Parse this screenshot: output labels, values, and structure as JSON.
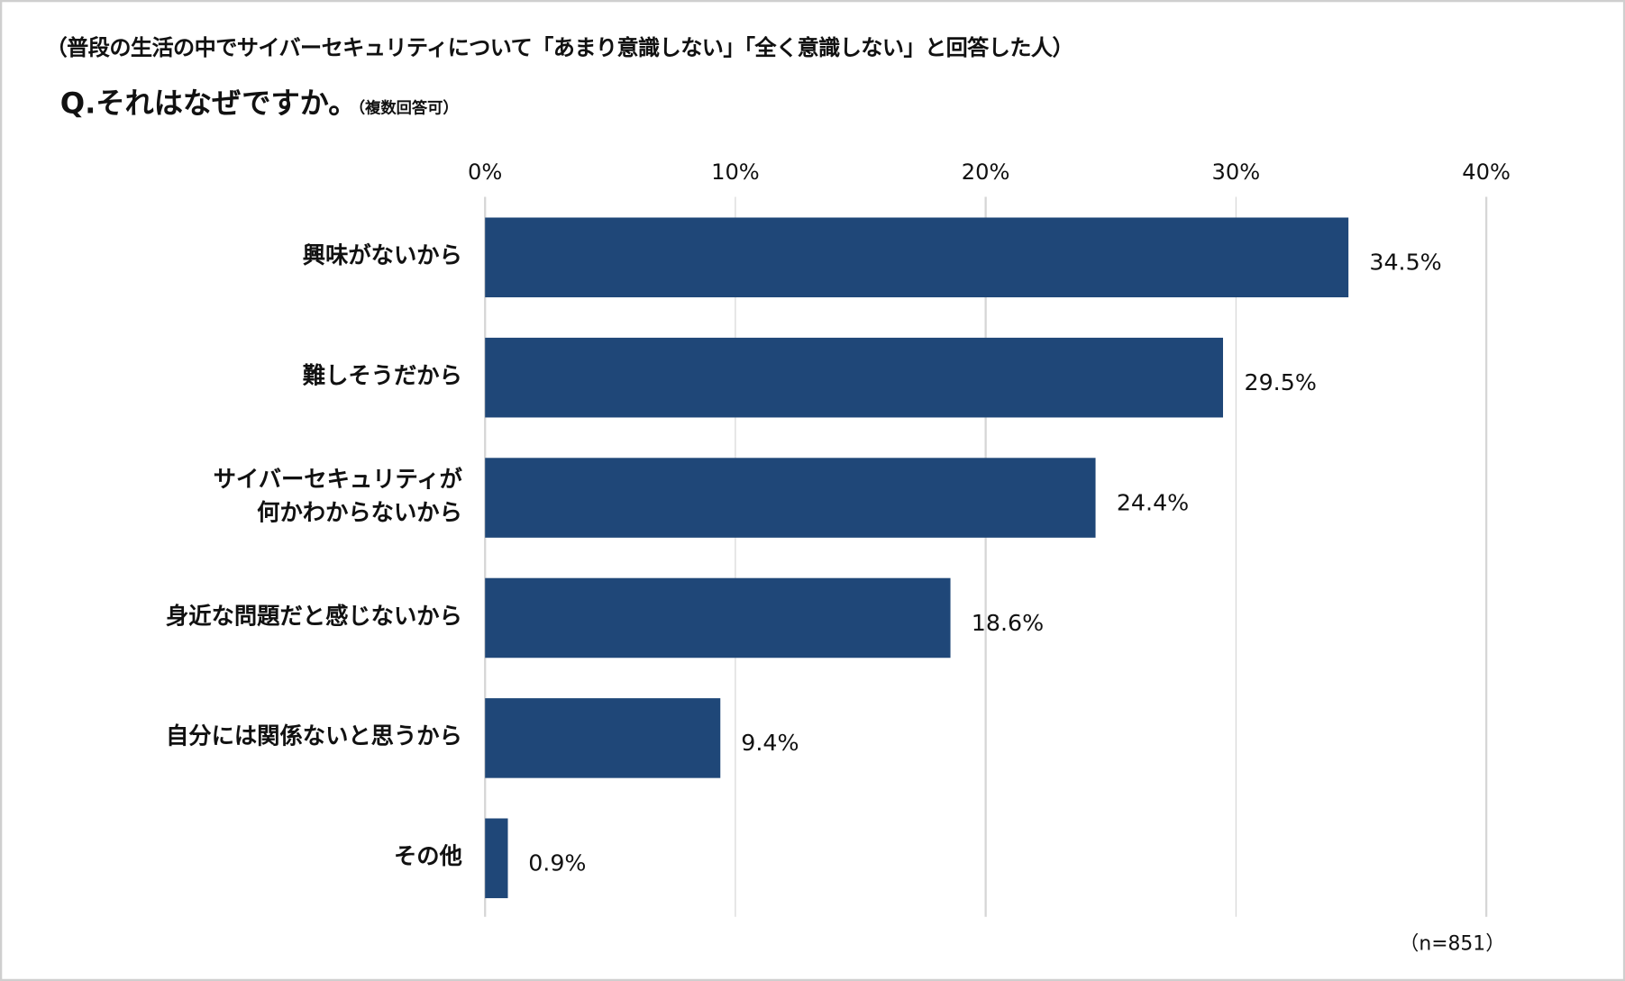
{
  "chart_data": {
    "type": "bar",
    "orientation": "horizontal",
    "subtitle": "（普段の生活の中でサイバーセキュリティについて「あまり意識しない」「全く意識しない」と回答した人）",
    "title": "Q.それはなぜですか。",
    "title_note": "（複数回答可）",
    "categories": [
      "興味がないから",
      "難しそうだから",
      "サイバーセキュリティが\n何かわからないから",
      "身近な問題だと感じないから",
      "自分には関係ないと思うから",
      "その他"
    ],
    "values": [
      34.5,
      29.5,
      24.4,
      18.6,
      9.4,
      0.9
    ],
    "value_labels": [
      "34.5%",
      "29.5%",
      "24.4%",
      "18.6%",
      "9.4%",
      "0.9%"
    ],
    "xlim": [
      0,
      40
    ],
    "xticks": [
      0,
      10,
      20,
      30,
      40
    ],
    "xtick_labels": [
      "0%",
      "10%",
      "20%",
      "30%",
      "40%"
    ],
    "axis_position": "top",
    "grid": true,
    "bar_color": "#1f4778",
    "sample_note": "（n=851）"
  }
}
